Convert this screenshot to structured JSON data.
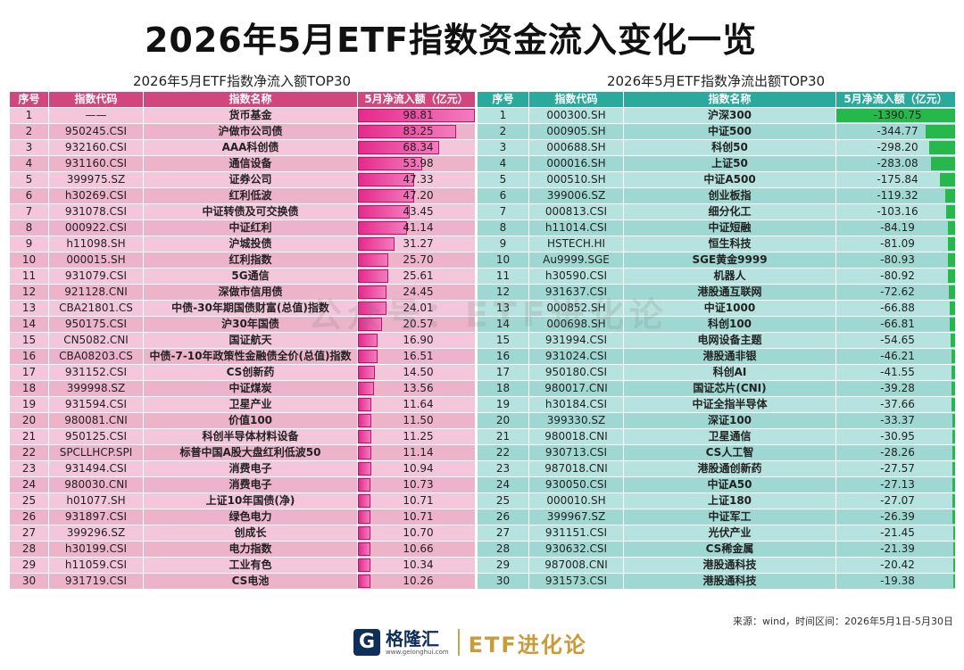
{
  "title": "2026年5月ETF指数资金流入变化一览",
  "watermark": "公众号：ETF进化论",
  "source": "来源：wind，时间区间：2026年5月1日-5月30日",
  "footer": {
    "brand_cn": "格隆汇",
    "brand_url": "www.gelonghui.com",
    "brand_etf": "ETF进化论"
  },
  "colors": {
    "inflow_header": "#d2467e",
    "inflow_bar": "#e52a8c",
    "outflow_header": "#2aa99d",
    "outflow_bar": "#26b84a"
  },
  "inflow": {
    "subtitle": "2026年5月ETF指数净流入额TOP30",
    "headers": [
      "序号",
      "指数代码",
      "指数名称",
      "5月净流入额（亿元）"
    ],
    "max": 98.81,
    "rows": [
      {
        "rank": "1",
        "code": "——",
        "name": "货币基金",
        "value": "98.81",
        "v": 98.81
      },
      {
        "rank": "2",
        "code": "950245.CSI",
        "name": "沪做市公司债",
        "value": "83.25",
        "v": 83.25
      },
      {
        "rank": "3",
        "code": "932160.CSI",
        "name": "AAA科创债",
        "value": "68.34",
        "v": 68.34
      },
      {
        "rank": "4",
        "code": "931160.CSI",
        "name": "通信设备",
        "value": "53.98",
        "v": 53.98
      },
      {
        "rank": "5",
        "code": "399975.SZ",
        "name": "证券公司",
        "value": "47.33",
        "v": 47.33
      },
      {
        "rank": "6",
        "code": "h30269.CSI",
        "name": "红利低波",
        "value": "47.20",
        "v": 47.2
      },
      {
        "rank": "7",
        "code": "931078.CSI",
        "name": "中证转债及可交换债",
        "value": "43.45",
        "v": 43.45
      },
      {
        "rank": "8",
        "code": "000922.CSI",
        "name": "中证红利",
        "value": "41.14",
        "v": 41.14
      },
      {
        "rank": "9",
        "code": "h11098.SH",
        "name": "沪城投债",
        "value": "31.27",
        "v": 31.27
      },
      {
        "rank": "10",
        "code": "000015.SH",
        "name": "红利指数",
        "value": "25.70",
        "v": 25.7
      },
      {
        "rank": "11",
        "code": "931079.CSI",
        "name": "5G通信",
        "value": "25.61",
        "v": 25.61
      },
      {
        "rank": "12",
        "code": "921128.CNI",
        "name": "深做市信用债",
        "value": "24.45",
        "v": 24.45
      },
      {
        "rank": "13",
        "code": "CBA21801.CS",
        "name": "中债-30年期国债财富(总值)指数",
        "value": "24.01",
        "v": 24.01
      },
      {
        "rank": "14",
        "code": "950175.CSI",
        "name": "沪30年国债",
        "value": "20.57",
        "v": 20.57
      },
      {
        "rank": "15",
        "code": "CN5082.CNI",
        "name": "国证航天",
        "value": "16.90",
        "v": 16.9
      },
      {
        "rank": "16",
        "code": "CBA08203.CS",
        "name": "中债-7-10年政策性金融债全价(总值)指数",
        "value": "16.51",
        "v": 16.51
      },
      {
        "rank": "17",
        "code": "931152.CSI",
        "name": "CS创新药",
        "value": "14.50",
        "v": 14.5
      },
      {
        "rank": "18",
        "code": "399998.SZ",
        "name": "中证煤炭",
        "value": "13.56",
        "v": 13.56
      },
      {
        "rank": "19",
        "code": "931594.CSI",
        "name": "卫星产业",
        "value": "11.64",
        "v": 11.64
      },
      {
        "rank": "20",
        "code": "980081.CNI",
        "name": "价值100",
        "value": "11.50",
        "v": 11.5
      },
      {
        "rank": "21",
        "code": "950125.CSI",
        "name": "科创半导体材料设备",
        "value": "11.25",
        "v": 11.25
      },
      {
        "rank": "22",
        "code": "SPCLLHCP.SPI",
        "name": "标普中国A股大盘红利低波50",
        "value": "11.14",
        "v": 11.14
      },
      {
        "rank": "23",
        "code": "931494.CSI",
        "name": "消费电子",
        "value": "10.94",
        "v": 10.94
      },
      {
        "rank": "24",
        "code": "980030.CNI",
        "name": "消费电子",
        "value": "10.73",
        "v": 10.73
      },
      {
        "rank": "25",
        "code": "h01077.SH",
        "name": "上证10年国债(净)",
        "value": "10.71",
        "v": 10.71
      },
      {
        "rank": "26",
        "code": "931897.CSI",
        "name": "绿色电力",
        "value": "10.71",
        "v": 10.71
      },
      {
        "rank": "27",
        "code": "399296.SZ",
        "name": "创成长",
        "value": "10.70",
        "v": 10.7
      },
      {
        "rank": "28",
        "code": "h30199.CSI",
        "name": "电力指数",
        "value": "10.66",
        "v": 10.66
      },
      {
        "rank": "29",
        "code": "h11059.CSI",
        "name": "工业有色",
        "value": "10.34",
        "v": 10.34
      },
      {
        "rank": "30",
        "code": "931719.CSI",
        "name": "CS电池",
        "value": "10.26",
        "v": 10.26
      }
    ]
  },
  "outflow": {
    "subtitle": "2026年5月ETF指数净流出额TOP30",
    "headers": [
      "序号",
      "指数代码",
      "指数名称",
      "5月净流入额（亿元）"
    ],
    "max": 1390.75,
    "rows": [
      {
        "rank": "1",
        "code": "000300.SH",
        "name": "沪深300",
        "value": "-1390.75",
        "v": 1390.75
      },
      {
        "rank": "2",
        "code": "000905.SH",
        "name": "中证500",
        "value": "-344.77",
        "v": 344.77
      },
      {
        "rank": "3",
        "code": "000688.SH",
        "name": "科创50",
        "value": "-298.20",
        "v": 298.2
      },
      {
        "rank": "4",
        "code": "000016.SH",
        "name": "上证50",
        "value": "-283.08",
        "v": 283.08
      },
      {
        "rank": "5",
        "code": "000510.SH",
        "name": "中证A500",
        "value": "-175.84",
        "v": 175.84
      },
      {
        "rank": "6",
        "code": "399006.SZ",
        "name": "创业板指",
        "value": "-119.32",
        "v": 119.32
      },
      {
        "rank": "7",
        "code": "000813.CSI",
        "name": "细分化工",
        "value": "-103.16",
        "v": 103.16
      },
      {
        "rank": "8",
        "code": "h11014.CSI",
        "name": "中证短融",
        "value": "-84.19",
        "v": 84.19
      },
      {
        "rank": "9",
        "code": "HSTECH.HI",
        "name": "恒生科技",
        "value": "-81.09",
        "v": 81.09
      },
      {
        "rank": "10",
        "code": "Au9999.SGE",
        "name": "SGE黄金9999",
        "value": "-80.93",
        "v": 80.93
      },
      {
        "rank": "11",
        "code": "h30590.CSI",
        "name": "机器人",
        "value": "-80.92",
        "v": 80.92
      },
      {
        "rank": "12",
        "code": "931637.CSI",
        "name": "港股通互联网",
        "value": "-72.62",
        "v": 72.62
      },
      {
        "rank": "13",
        "code": "000852.SH",
        "name": "中证1000",
        "value": "-66.88",
        "v": 66.88
      },
      {
        "rank": "14",
        "code": "000698.SH",
        "name": "科创100",
        "value": "-66.81",
        "v": 66.81
      },
      {
        "rank": "15",
        "code": "931994.CSI",
        "name": "电网设备主题",
        "value": "-54.65",
        "v": 54.65
      },
      {
        "rank": "16",
        "code": "931024.CSI",
        "name": "港股通非银",
        "value": "-46.21",
        "v": 46.21
      },
      {
        "rank": "17",
        "code": "950180.CSI",
        "name": "科创AI",
        "value": "-41.55",
        "v": 41.55
      },
      {
        "rank": "18",
        "code": "980017.CNI",
        "name": "国证芯片(CNI)",
        "value": "-39.28",
        "v": 39.28
      },
      {
        "rank": "19",
        "code": "h30184.CSI",
        "name": "中证全指半导体",
        "value": "-37.66",
        "v": 37.66
      },
      {
        "rank": "20",
        "code": "399330.SZ",
        "name": "深证100",
        "value": "-33.37",
        "v": 33.37
      },
      {
        "rank": "21",
        "code": "980018.CNI",
        "name": "卫星通信",
        "value": "-30.95",
        "v": 30.95
      },
      {
        "rank": "22",
        "code": "930713.CSI",
        "name": "CS人工智",
        "value": "-28.26",
        "v": 28.26
      },
      {
        "rank": "23",
        "code": "987018.CNI",
        "name": "港股通创新药",
        "value": "-27.57",
        "v": 27.57
      },
      {
        "rank": "24",
        "code": "930050.CSI",
        "name": "中证A50",
        "value": "-27.13",
        "v": 27.13
      },
      {
        "rank": "25",
        "code": "000010.SH",
        "name": "上证180",
        "value": "-27.07",
        "v": 27.07
      },
      {
        "rank": "26",
        "code": "399967.SZ",
        "name": "中证军工",
        "value": "-26.39",
        "v": 26.39
      },
      {
        "rank": "27",
        "code": "931151.CSI",
        "name": "光伏产业",
        "value": "-21.45",
        "v": 21.45
      },
      {
        "rank": "28",
        "code": "930632.CSI",
        "name": "CS稀金属",
        "value": "-21.39",
        "v": 21.39
      },
      {
        "rank": "29",
        "code": "987008.CNI",
        "name": "港股通科技",
        "value": "-20.42",
        "v": 20.42
      },
      {
        "rank": "30",
        "code": "931573.CSI",
        "name": "港股通科技",
        "value": "-19.38",
        "v": 19.38
      }
    ]
  }
}
